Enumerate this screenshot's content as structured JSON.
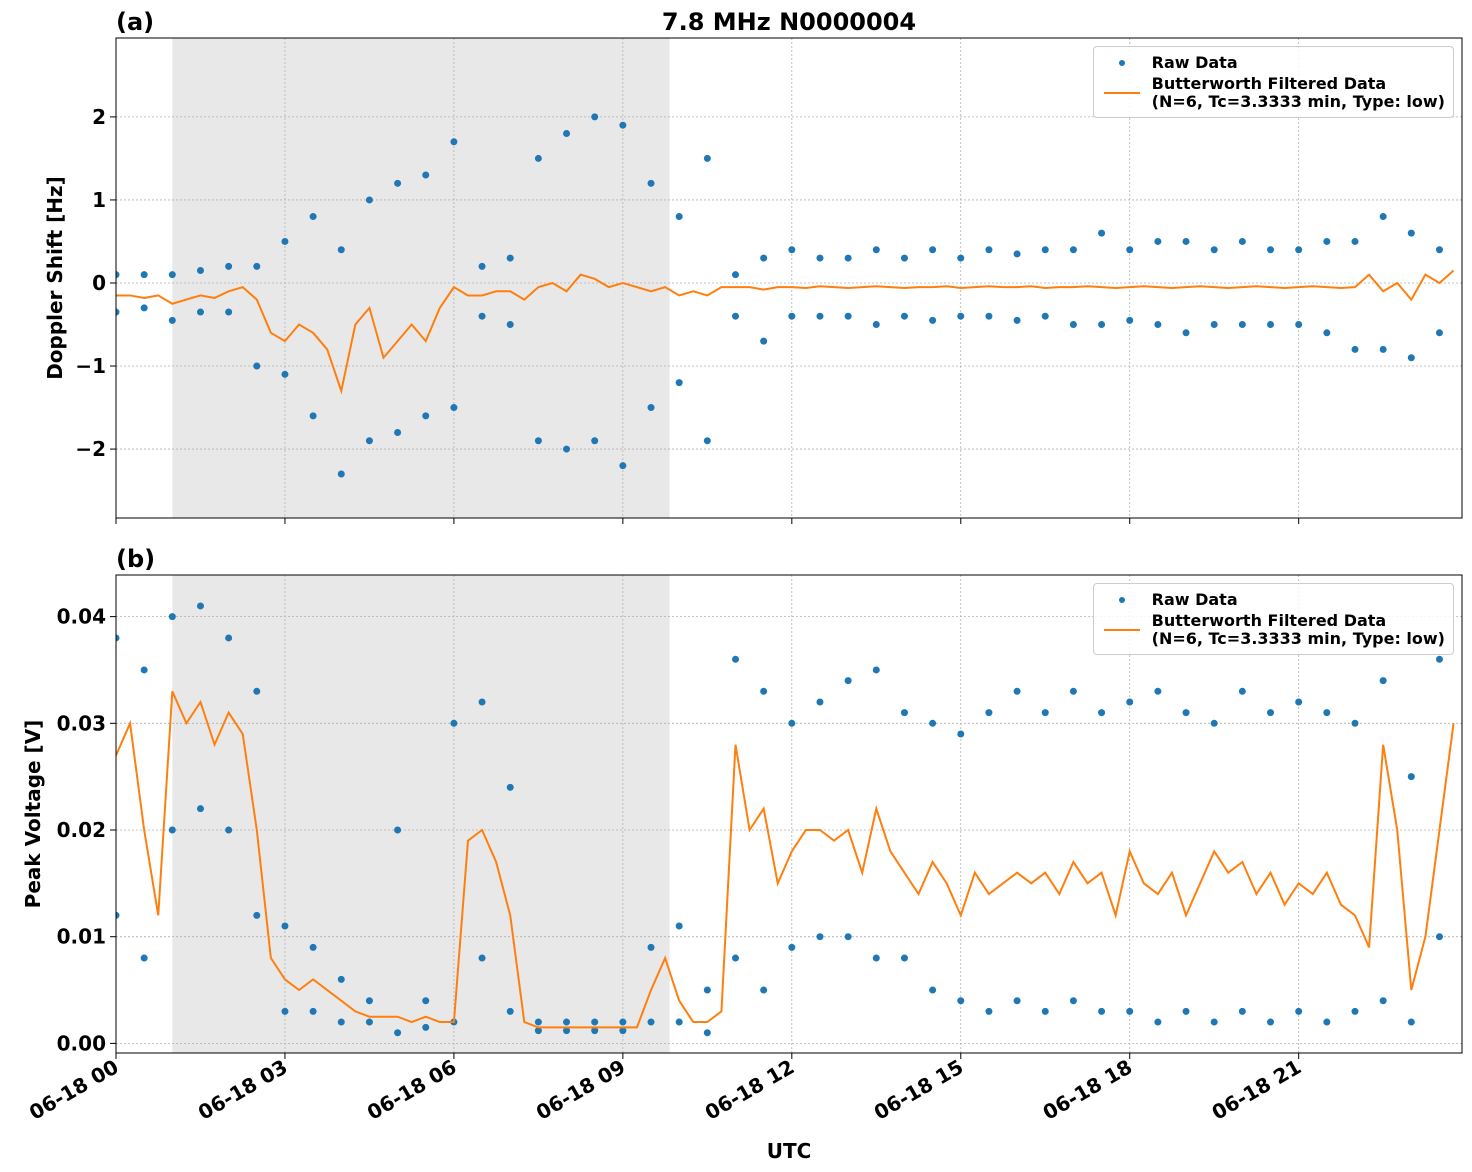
{
  "chart_data": [
    {
      "type": "scatter",
      "panel_label": "(a)",
      "title": "7.8 MHz N0000004",
      "y_label": "Doppler Shift [Hz]",
      "xlim": [
        0,
        23.9
      ],
      "ylim": [
        -2.83,
        2.95
      ],
      "xticks": [
        0,
        3,
        6,
        9,
        12,
        15,
        18,
        21
      ],
      "yticks": [
        {
          "value": -2,
          "label": "−2"
        },
        {
          "value": -1,
          "label": "−1"
        },
        0,
        1,
        2
      ],
      "grid": true,
      "legend": "upper right",
      "shade": [
        1.0,
        9.83
      ],
      "series": [
        {
          "name": "Raw Data",
          "color": "#1f77b4",
          "mode": "markers",
          "x": [
            0,
            0,
            0.5,
            0.5,
            1,
            1,
            1.5,
            1.5,
            2,
            2,
            2.5,
            2.5,
            3,
            3,
            3.5,
            3.5,
            4,
            4,
            4.5,
            4.5,
            5,
            5,
            5.5,
            5.5,
            6,
            6,
            6.5,
            6.5,
            7,
            7,
            7.5,
            7.5,
            8,
            8,
            8.5,
            8.5,
            9,
            9,
            9.5,
            9.5,
            10,
            10,
            10.5,
            10.5,
            11,
            11,
            11.5,
            11.5,
            12,
            12,
            12.5,
            12.5,
            13,
            13,
            13.5,
            13.5,
            14,
            14,
            14.5,
            14.5,
            15,
            15,
            15.5,
            15.5,
            16,
            16,
            16.5,
            16.5,
            17,
            17,
            17.5,
            17.5,
            18,
            18,
            18.5,
            18.5,
            19,
            19,
            19.5,
            19.5,
            20,
            20,
            20.5,
            20.5,
            21,
            21,
            21.5,
            21.5,
            22,
            22,
            22.5,
            22.5,
            23,
            23,
            23.5,
            23.5
          ],
          "values": [
            0.1,
            -0.35,
            0.1,
            -0.3,
            0.1,
            -0.45,
            0.15,
            -0.35,
            0.2,
            -0.35,
            0.2,
            -1.0,
            0.5,
            -1.1,
            0.8,
            -1.6,
            0.4,
            -2.3,
            1.0,
            -1.9,
            1.2,
            -1.8,
            1.3,
            -1.6,
            1.7,
            -1.5,
            0.2,
            -0.4,
            0.3,
            -0.5,
            1.5,
            -1.9,
            1.8,
            -2.0,
            2.0,
            -1.9,
            1.9,
            -2.2,
            1.2,
            -1.5,
            0.8,
            -1.2,
            1.5,
            -1.9,
            0.1,
            -0.4,
            0.3,
            -0.7,
            0.4,
            -0.4,
            0.3,
            -0.4,
            0.3,
            -0.4,
            0.4,
            -0.5,
            0.3,
            -0.4,
            0.4,
            -0.45,
            0.3,
            -0.4,
            0.4,
            -0.4,
            0.35,
            -0.45,
            0.4,
            -0.4,
            0.4,
            -0.5,
            0.6,
            -0.5,
            0.4,
            -0.45,
            0.5,
            -0.5,
            0.5,
            -0.6,
            0.4,
            -0.5,
            0.5,
            -0.5,
            0.4,
            -0.5,
            0.4,
            -0.5,
            0.5,
            -0.6,
            0.5,
            -0.8,
            0.8,
            -0.8,
            0.6,
            -0.9,
            0.4,
            -0.6
          ]
        },
        {
          "name": "Butterworth Filtered Data\n(N=6, Tc=3.3333 min, Type: low)",
          "color": "#ff7f0e",
          "mode": "line",
          "x": [
            0,
            0.25,
            0.5,
            0.75,
            1,
            1.25,
            1.5,
            1.75,
            2,
            2.25,
            2.5,
            2.75,
            3,
            3.25,
            3.5,
            3.75,
            4,
            4.25,
            4.5,
            4.75,
            5,
            5.25,
            5.5,
            5.75,
            6,
            6.25,
            6.5,
            6.75,
            7,
            7.25,
            7.5,
            7.75,
            8,
            8.25,
            8.5,
            8.75,
            9,
            9.25,
            9.5,
            9.75,
            10,
            10.25,
            10.5,
            10.75,
            11,
            11.25,
            11.5,
            11.75,
            12,
            12.25,
            12.5,
            12.75,
            13,
            13.25,
            13.5,
            13.75,
            14,
            14.25,
            14.5,
            14.75,
            15,
            15.25,
            15.5,
            15.75,
            16,
            16.25,
            16.5,
            16.75,
            17,
            17.25,
            17.5,
            17.75,
            18,
            18.25,
            18.5,
            18.75,
            19,
            19.25,
            19.5,
            19.75,
            20,
            20.25,
            20.5,
            20.75,
            21,
            21.25,
            21.5,
            21.75,
            22,
            22.25,
            22.5,
            22.75,
            23,
            23.25,
            23.5,
            23.75
          ],
          "values": [
            -0.15,
            -0.15,
            -0.18,
            -0.15,
            -0.25,
            -0.2,
            -0.15,
            -0.18,
            -0.1,
            -0.05,
            -0.2,
            -0.6,
            -0.7,
            -0.5,
            -0.6,
            -0.8,
            -1.3,
            -0.5,
            -0.3,
            -0.9,
            -0.7,
            -0.5,
            -0.7,
            -0.3,
            -0.05,
            -0.15,
            -0.15,
            -0.1,
            -0.1,
            -0.2,
            -0.05,
            0.0,
            -0.1,
            0.1,
            0.05,
            -0.05,
            0.0,
            -0.05,
            -0.1,
            -0.05,
            -0.15,
            -0.1,
            -0.15,
            -0.05,
            -0.05,
            -0.05,
            -0.08,
            -0.05,
            -0.05,
            -0.06,
            -0.04,
            -0.05,
            -0.06,
            -0.05,
            -0.04,
            -0.05,
            -0.06,
            -0.05,
            -0.05,
            -0.04,
            -0.06,
            -0.05,
            -0.04,
            -0.05,
            -0.05,
            -0.04,
            -0.06,
            -0.05,
            -0.05,
            -0.04,
            -0.05,
            -0.06,
            -0.05,
            -0.04,
            -0.05,
            -0.06,
            -0.05,
            -0.04,
            -0.05,
            -0.06,
            -0.05,
            -0.04,
            -0.05,
            -0.06,
            -0.05,
            -0.04,
            -0.05,
            -0.06,
            -0.05,
            0.1,
            -0.1,
            0.0,
            -0.2,
            0.1,
            0.0,
            0.15
          ]
        }
      ]
    },
    {
      "type": "scatter",
      "panel_label": "(b)",
      "y_label": "Peak Voltage [V]",
      "x_label": "UTC",
      "xlim": [
        0,
        23.9
      ],
      "ylim": [
        -0.0009,
        0.0439
      ],
      "xticks": [
        {
          "value": 0,
          "label": "06-18 00"
        },
        {
          "value": 3,
          "label": "06-18 03"
        },
        {
          "value": 6,
          "label": "06-18 06"
        },
        {
          "value": 9,
          "label": "06-18 09"
        },
        {
          "value": 12,
          "label": "06-18 12"
        },
        {
          "value": 15,
          "label": "06-18 15"
        },
        {
          "value": 18,
          "label": "06-18 18"
        },
        {
          "value": 21,
          "label": "06-18 21"
        }
      ],
      "yticks": [
        {
          "value": 0,
          "label": "0.00"
        },
        {
          "value": 0.01,
          "label": "0.01"
        },
        {
          "value": 0.02,
          "label": "0.02"
        },
        {
          "value": 0.03,
          "label": "0.03"
        },
        {
          "value": 0.04,
          "label": "0.04"
        }
      ],
      "grid": true,
      "legend": "upper right",
      "shade": [
        1.0,
        9.83
      ],
      "series": [
        {
          "name": "Raw Data",
          "color": "#1f77b4",
          "mode": "markers",
          "x": [
            0,
            0,
            0.5,
            0.5,
            1,
            1,
            1.5,
            1.5,
            2,
            2,
            2.5,
            2.5,
            3,
            3,
            3.5,
            3.5,
            4,
            4,
            4.5,
            4.5,
            5,
            5,
            5.5,
            5.5,
            6,
            6,
            6.5,
            6.5,
            7,
            7,
            7.5,
            7.5,
            8,
            8,
            8.5,
            8.5,
            9,
            9,
            9.5,
            9.5,
            10,
            10,
            10.5,
            10.5,
            11,
            11,
            11.5,
            11.5,
            12,
            12,
            12.5,
            12.5,
            13,
            13,
            13.5,
            13.5,
            14,
            14,
            14.5,
            14.5,
            15,
            15,
            15.5,
            15.5,
            16,
            16,
            16.5,
            16.5,
            17,
            17,
            17.5,
            17.5,
            18,
            18,
            18.5,
            18.5,
            19,
            19,
            19.5,
            19.5,
            20,
            20,
            20.5,
            20.5,
            21,
            21,
            21.5,
            21.5,
            22,
            22,
            22.5,
            22.5,
            23,
            23,
            23.5,
            23.5
          ],
          "values": [
            0.038,
            0.012,
            0.035,
            0.008,
            0.04,
            0.02,
            0.041,
            0.022,
            0.038,
            0.02,
            0.033,
            0.012,
            0.011,
            0.003,
            0.009,
            0.003,
            0.006,
            0.002,
            0.004,
            0.002,
            0.02,
            0.001,
            0.004,
            0.0015,
            0.03,
            0.002,
            0.032,
            0.008,
            0.024,
            0.003,
            0.002,
            0.0012,
            0.002,
            0.0012,
            0.002,
            0.0012,
            0.002,
            0.0012,
            0.009,
            0.002,
            0.011,
            0.002,
            0.005,
            0.001,
            0.036,
            0.008,
            0.033,
            0.005,
            0.03,
            0.009,
            0.032,
            0.01,
            0.034,
            0.01,
            0.035,
            0.008,
            0.031,
            0.008,
            0.03,
            0.005,
            0.029,
            0.004,
            0.031,
            0.003,
            0.033,
            0.004,
            0.031,
            0.003,
            0.033,
            0.004,
            0.031,
            0.003,
            0.032,
            0.003,
            0.033,
            0.002,
            0.031,
            0.003,
            0.03,
            0.002,
            0.033,
            0.003,
            0.031,
            0.002,
            0.032,
            0.003,
            0.031,
            0.002,
            0.03,
            0.003,
            0.034,
            0.004,
            0.025,
            0.002,
            0.036,
            0.01
          ]
        },
        {
          "name": "Butterworth Filtered Data\n(N=6, Tc=3.3333 min, Type: low)",
          "color": "#ff7f0e",
          "mode": "line",
          "x": [
            0,
            0.25,
            0.5,
            0.75,
            1,
            1.25,
            1.5,
            1.75,
            2,
            2.25,
            2.5,
            2.75,
            3,
            3.25,
            3.5,
            3.75,
            4,
            4.25,
            4.5,
            4.75,
            5,
            5.25,
            5.5,
            5.75,
            6,
            6.25,
            6.5,
            6.75,
            7,
            7.25,
            7.5,
            7.75,
            8,
            8.25,
            8.5,
            8.75,
            9,
            9.25,
            9.5,
            9.75,
            10,
            10.25,
            10.5,
            10.75,
            11,
            11.25,
            11.5,
            11.75,
            12,
            12.25,
            12.5,
            12.75,
            13,
            13.25,
            13.5,
            13.75,
            14,
            14.25,
            14.5,
            14.75,
            15,
            15.25,
            15.5,
            15.75,
            16,
            16.25,
            16.5,
            16.75,
            17,
            17.25,
            17.5,
            17.75,
            18,
            18.25,
            18.5,
            18.75,
            19,
            19.25,
            19.5,
            19.75,
            20,
            20.25,
            20.5,
            20.75,
            21,
            21.25,
            21.5,
            21.75,
            22,
            22.25,
            22.5,
            22.75,
            23,
            23.25,
            23.5,
            23.75
          ],
          "values": [
            0.027,
            0.03,
            0.02,
            0.012,
            0.033,
            0.03,
            0.032,
            0.028,
            0.031,
            0.029,
            0.02,
            0.008,
            0.006,
            0.005,
            0.006,
            0.005,
            0.004,
            0.003,
            0.0025,
            0.0025,
            0.0025,
            0.002,
            0.0025,
            0.002,
            0.002,
            0.019,
            0.02,
            0.017,
            0.012,
            0.002,
            0.0015,
            0.0015,
            0.0015,
            0.0015,
            0.0015,
            0.0015,
            0.0015,
            0.0015,
            0.005,
            0.008,
            0.004,
            0.002,
            0.002,
            0.003,
            0.028,
            0.02,
            0.022,
            0.015,
            0.018,
            0.02,
            0.02,
            0.019,
            0.02,
            0.016,
            0.022,
            0.018,
            0.016,
            0.014,
            0.017,
            0.015,
            0.012,
            0.016,
            0.014,
            0.015,
            0.016,
            0.015,
            0.016,
            0.014,
            0.017,
            0.015,
            0.016,
            0.012,
            0.018,
            0.015,
            0.014,
            0.016,
            0.012,
            0.015,
            0.018,
            0.016,
            0.017,
            0.014,
            0.016,
            0.013,
            0.015,
            0.014,
            0.016,
            0.013,
            0.012,
            0.009,
            0.028,
            0.02,
            0.005,
            0.01,
            0.02,
            0.03
          ]
        }
      ]
    }
  ]
}
